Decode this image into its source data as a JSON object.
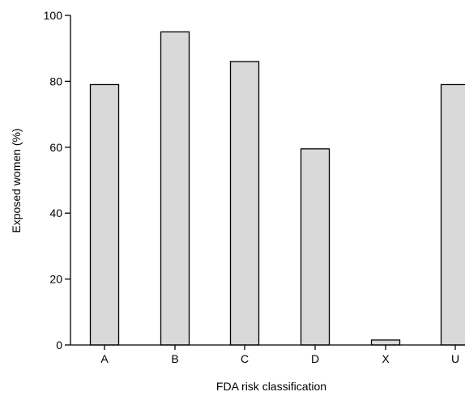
{
  "chart_data": {
    "type": "bar",
    "categories": [
      "A",
      "B",
      "C",
      "D",
      "X",
      "U"
    ],
    "values": [
      79,
      95,
      86,
      59.5,
      1.5,
      79
    ],
    "xlabel": "FDA risk classification",
    "ylabel": "Exposed women (%)",
    "ylim": [
      0,
      100
    ],
    "yticks": [
      "0",
      "20",
      "40",
      "60",
      "80",
      "100"
    ],
    "grid": false,
    "bar_color": "#d9d9d9"
  }
}
